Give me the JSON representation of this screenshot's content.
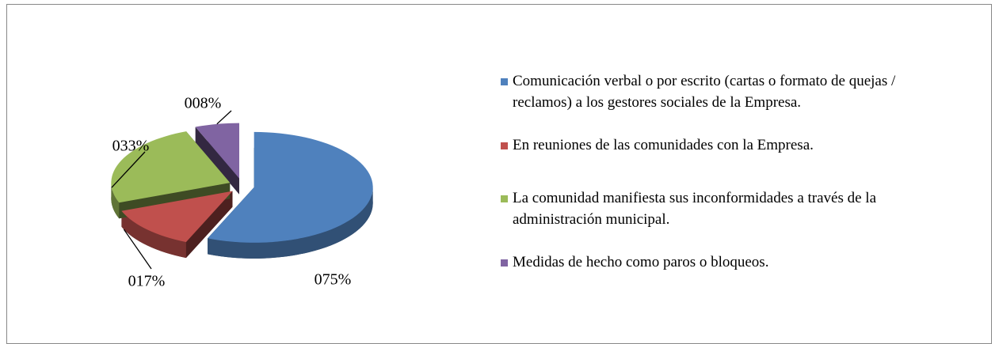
{
  "chart_data": {
    "type": "pie",
    "categories": [
      "Comunicación verbal o por escrito (cartas o formato de quejas / reclamos) a los gestores sociales de la Empresa.",
      "En reuniones de las comunidades con la Empresa.",
      "La comunidad manifiesta sus inconformidades a través de la administración municipal.",
      "Medidas de hecho como paros o bloqueos."
    ],
    "values": [
      75,
      17,
      33,
      8
    ],
    "value_labels": [
      "075%",
      "017%",
      "033%",
      "008%"
    ],
    "colors": [
      "#4f81bd",
      "#c0504d",
      "#9bbb59",
      "#8064a2"
    ],
    "legend": "right"
  }
}
